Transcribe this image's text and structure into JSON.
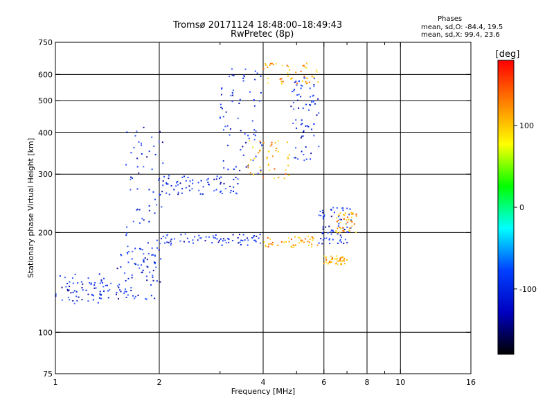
{
  "header": {
    "title_line1": "Tromsø 20171124 18:48:00–18:49:43",
    "title_line2": "RwPretec (8p)",
    "stats_title": "Phases",
    "stats_o": "mean, sd,O: -84.4, 19.5",
    "stats_x": "mean, sd,X:  99.4, 23.6"
  },
  "chart_data": {
    "type": "scatter",
    "title": "Tromsø 20171124 18:48:00–18:49:43",
    "subtitle": "RwPretec (8p)",
    "xlabel": "Frequency [MHz]",
    "ylabel": "Stationary phase Virtual Height [km]",
    "xscale": "log",
    "yscale": "log",
    "xlim": [
      1,
      16
    ],
    "ylim": [
      75,
      750
    ],
    "x_ticks": [
      1,
      2,
      4,
      6,
      8,
      10,
      16
    ],
    "x_minor_ticks": [
      3,
      5,
      7,
      9
    ],
    "x_grid": [
      2,
      4,
      6,
      8,
      10
    ],
    "y_ticks": [
      75,
      100,
      200,
      300,
      400,
      500,
      600,
      750
    ],
    "y_grid": [
      100,
      200,
      300,
      400,
      500,
      600
    ],
    "grid": true,
    "colorbar": {
      "label": "[deg]",
      "range": [
        -180,
        180
      ],
      "ticks": [
        100,
        0,
        -100
      ],
      "stops": [
        "#ff0000",
        "#ff8000",
        "#ffff00",
        "#00ff00",
        "#00ffff",
        "#0040ff",
        "#0000c0",
        "#000000"
      ]
    },
    "series": [
      {
        "name": "mean, sd,O: -84.4, 19.5",
        "color_phase": -84.4,
        "color": "#1e3cff",
        "traces": [
          {
            "x_range": [
              1.0,
              1.45
            ],
            "y_range": [
              122,
              150
            ]
          },
          {
            "x_range": [
              1.5,
              1.95
            ],
            "y_range": [
              125,
              185
            ]
          },
          {
            "x_range": [
              1.6,
              2.05
            ],
            "y_range": [
              140,
              420
            ]
          },
          {
            "x_range": [
              2.0,
              3.5
            ],
            "y_range": [
              260,
              300
            ]
          },
          {
            "x_range": [
              2.0,
              4.0
            ],
            "y_range": [
              183,
              198
            ]
          },
          {
            "x_range": [
              3.0,
              4.0
            ],
            "y_range": [
              300,
              640
            ]
          },
          {
            "x_range": [
              4.8,
              5.8
            ],
            "y_range": [
              330,
              590
            ]
          },
          {
            "x_range": [
              5.8,
              7.2
            ],
            "y_range": [
              185,
              240
            ]
          }
        ]
      },
      {
        "name": "mean, sd,X:  99.4, 23.6",
        "color_phase": 99.4,
        "color": "#ffc000",
        "traces": [
          {
            "x_range": [
              3.6,
              4.8
            ],
            "y_range": [
              290,
              380
            ]
          },
          {
            "x_range": [
              4.0,
              5.8
            ],
            "y_range": [
              180,
              195
            ]
          },
          {
            "x_range": [
              6.0,
              7.0
            ],
            "y_range": [
              160,
              170
            ]
          },
          {
            "x_range": [
              6.5,
              7.5
            ],
            "y_range": [
              200,
              230
            ]
          },
          {
            "x_range": [
              4.0,
              5.8
            ],
            "y_range": [
              560,
              650
            ]
          }
        ]
      }
    ]
  }
}
